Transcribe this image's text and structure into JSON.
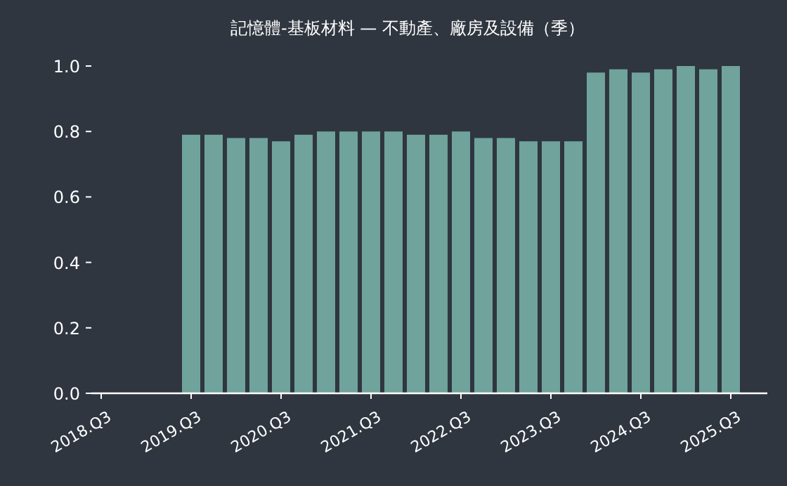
{
  "chart_data": {
    "type": "bar",
    "title": "記憶體-基板材料 — 不動產、廠房及設備（季）",
    "categories": [
      "2018.Q3",
      null,
      null,
      null,
      "2019.Q3",
      null,
      null,
      null,
      "2020.Q3",
      null,
      null,
      null,
      "2021.Q3",
      null,
      null,
      null,
      "2022.Q3",
      null,
      null,
      null,
      "2023.Q3",
      null,
      null,
      null,
      "2024.Q3",
      null,
      null,
      null,
      "2025.Q3"
    ],
    "values": [
      null,
      null,
      null,
      null,
      0.79,
      0.79,
      0.78,
      0.78,
      0.77,
      0.79,
      0.8,
      0.8,
      0.8,
      0.8,
      0.79,
      0.79,
      0.8,
      0.78,
      0.78,
      0.77,
      0.77,
      0.77,
      0.98,
      0.99,
      0.98,
      0.99,
      1.0,
      0.99,
      1.0
    ],
    "color": "#6fa39b",
    "ylim": [
      0,
      1.0
    ],
    "yticks": [
      {
        "value": 0,
        "label": "0.0"
      },
      {
        "value": 0.2,
        "label": "0.2"
      },
      {
        "value": 0.4,
        "label": "0.4"
      },
      {
        "value": 0.6,
        "label": "0.6"
      },
      {
        "value": 0.8,
        "label": "0.8"
      },
      {
        "value": 1.0,
        "label": "1.0"
      }
    ],
    "grid": false
  }
}
